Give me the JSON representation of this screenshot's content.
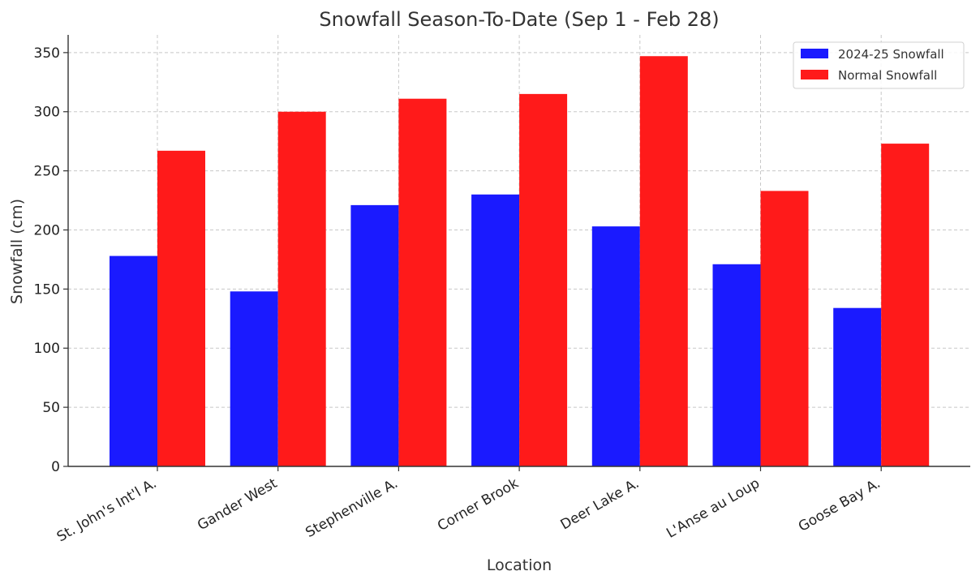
{
  "chart_data": {
    "type": "bar",
    "title": "Snowfall Season-To-Date (Sep 1 - Feb 28)",
    "xlabel": "Location",
    "ylabel": "Snowfall (cm)",
    "categories": [
      "St. John's Int'l A.",
      "Gander West",
      "Stephenville A.",
      "Corner Brook",
      "Deer Lake A.",
      "L'Anse au Loup",
      "Goose Bay A."
    ],
    "series": [
      {
        "name": "2024-25 Snowfall",
        "color": "#1a1aff",
        "values": [
          178,
          148,
          221,
          230,
          203,
          171,
          134
        ]
      },
      {
        "name": "Normal Snowfall",
        "color": "#ff1a1a",
        "values": [
          267,
          300,
          311,
          315,
          347,
          233,
          273
        ]
      }
    ],
    "ylim": [
      0,
      365
    ],
    "yticks": [
      0,
      50,
      100,
      150,
      200,
      250,
      300,
      350
    ],
    "grid": true,
    "legend_position": "top-right"
  }
}
